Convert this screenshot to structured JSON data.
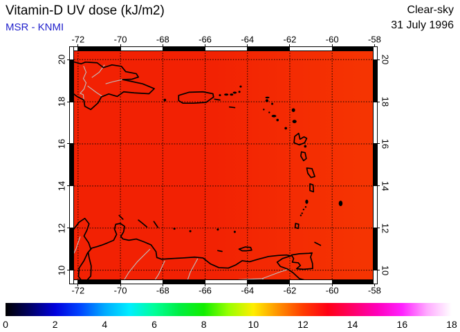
{
  "header": {
    "title": "Vitamin-D UV dose (kJ/m2)",
    "source": "MSR - KNMI",
    "condition": "Clear-sky",
    "date": "31 July 1996"
  },
  "colors": {
    "title_text": "#000000",
    "source_text": "#2222cc",
    "ocean_base": "#f22103",
    "hotspot_hispaniola": "#ec074e",
    "orange_edge": "#f55200",
    "coastline": "#000000",
    "rivers_borders": "#c0c0c0",
    "grid": "#000000"
  },
  "chart_data": {
    "type": "heatmap",
    "title": "Vitamin-D UV dose (kJ/m2)",
    "subtitle": "MSR - KNMI",
    "annotations": [
      "Clear-sky",
      "31 July 1996"
    ],
    "grid": "dotted",
    "x_axis": {
      "ticks": [
        -72,
        -70,
        -68,
        -66,
        -64,
        -62,
        -60,
        -58
      ],
      "tick_labels": [
        "-72",
        "-70",
        "-68",
        "-66",
        "-64",
        "-62",
        "-60",
        "-58"
      ],
      "range": [
        -72.42,
        -57.85
      ]
    },
    "y_axis": {
      "ticks": [
        20,
        18,
        16,
        14,
        12,
        10
      ],
      "tick_labels": [
        "20",
        "18",
        "16",
        "14",
        "12",
        "10"
      ],
      "range": [
        9.33,
        20.63
      ]
    },
    "colorbar": {
      "range": [
        0,
        18
      ],
      "ticks": [
        0,
        2,
        4,
        6,
        8,
        10,
        12,
        14,
        16,
        18
      ],
      "tick_labels": [
        "0",
        "2",
        "4",
        "6",
        "8",
        "10",
        "12",
        "14",
        "16",
        "18"
      ],
      "stops": [
        {
          "value": 0,
          "color": "#000000"
        },
        {
          "value": 1,
          "color": "#000066"
        },
        {
          "value": 2,
          "color": "#0000dd"
        },
        {
          "value": 3,
          "color": "#0044ff"
        },
        {
          "value": 4,
          "color": "#00aaff"
        },
        {
          "value": 5,
          "color": "#00eeff"
        },
        {
          "value": 6,
          "color": "#00ff99"
        },
        {
          "value": 7,
          "color": "#00ee44"
        },
        {
          "value": 8,
          "color": "#11ee00"
        },
        {
          "value": 9,
          "color": "#99ff00"
        },
        {
          "value": 10,
          "color": "#ffee00"
        },
        {
          "value": 11,
          "color": "#ff9100"
        },
        {
          "value": 12,
          "color": "#ff3c00"
        },
        {
          "value": 13,
          "color": "#ff0015"
        },
        {
          "value": 14,
          "color": "#ff0066"
        },
        {
          "value": 15,
          "color": "#ff00bb"
        },
        {
          "value": 16,
          "color": "#ff22ff"
        },
        {
          "value": 17,
          "color": "#ffaaff"
        },
        {
          "value": 18,
          "color": "#ffffff"
        }
      ]
    },
    "values_grid": {
      "lons": [
        -72,
        -70,
        -68,
        -66,
        -64,
        -62,
        -60,
        -58
      ],
      "lats": [
        20,
        18,
        16,
        14,
        12,
        10
      ],
      "dose_kj_m2": [
        [
          12.8,
          12.7,
          12.6,
          12.6,
          12.5,
          12.4,
          12.2,
          12.0
        ],
        [
          13.4,
          13.0,
          12.8,
          12.7,
          12.6,
          12.5,
          12.3,
          12.1
        ],
        [
          12.9,
          12.8,
          12.7,
          12.7,
          12.6,
          12.5,
          12.4,
          12.2
        ],
        [
          12.7,
          12.7,
          12.6,
          12.6,
          12.5,
          12.5,
          12.4,
          12.3
        ],
        [
          12.5,
          12.5,
          12.5,
          12.5,
          12.5,
          12.4,
          12.3,
          12.2
        ],
        [
          11.8,
          12.2,
          12.9,
          12.4,
          12.3,
          12.3,
          12.8,
          12.1
        ]
      ]
    }
  }
}
